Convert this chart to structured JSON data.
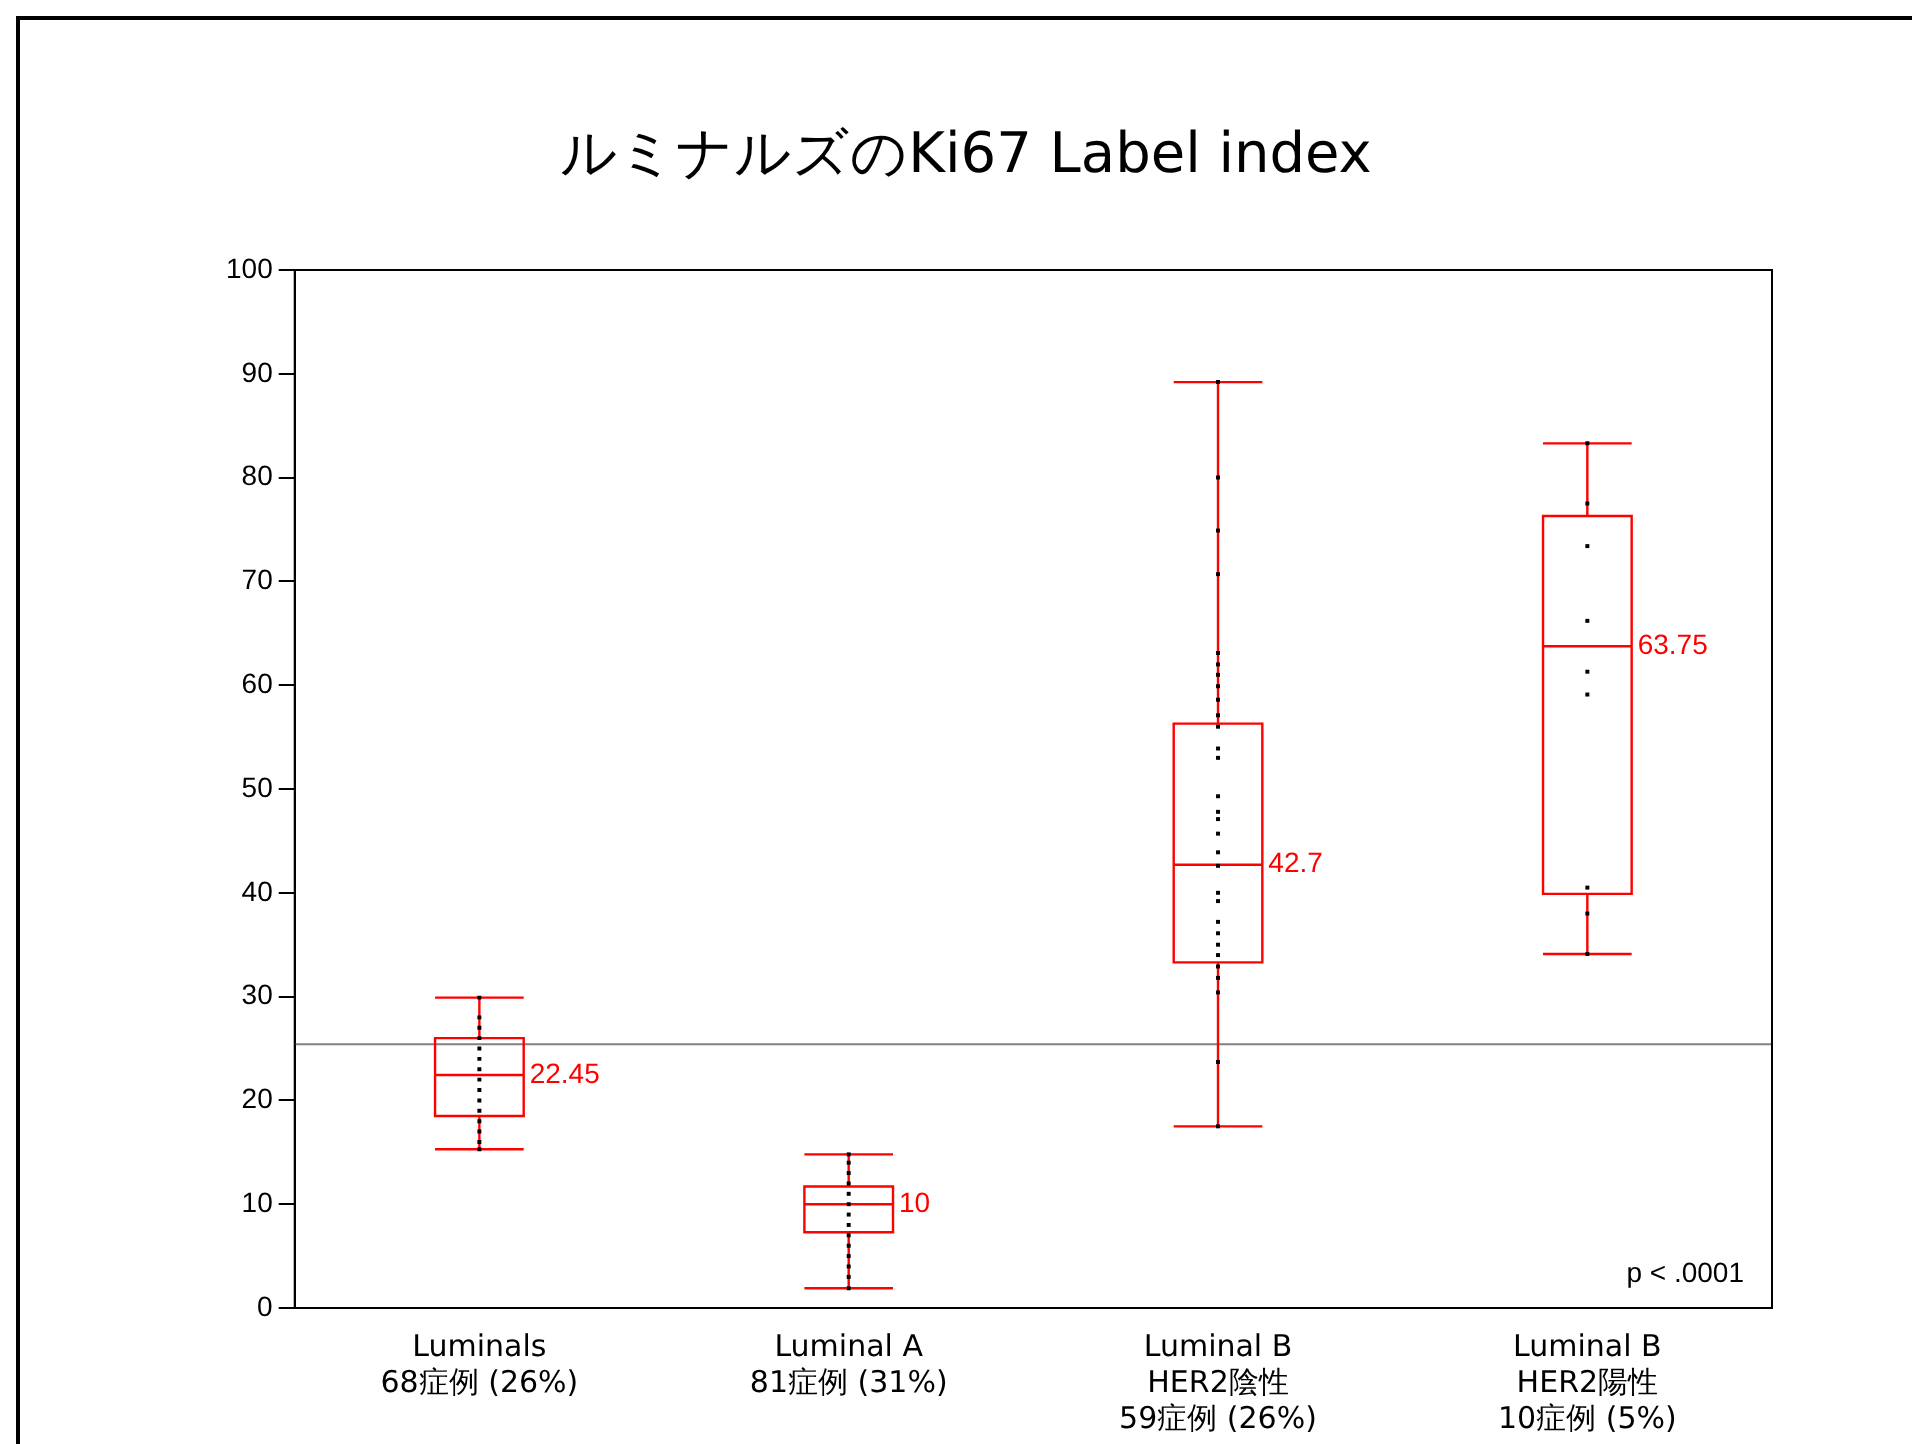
{
  "chart_data": {
    "type": "box",
    "title": "ルミナルズのKi67 Label index",
    "categories": [
      "Luminals\n68症例 (26%)",
      "Luminal A\n81症例 (31%)",
      "Luminal B\nHER2陰性\n59症例 (26%)",
      "Luminal B\nHER2陽性\n10症例 (5%)"
    ],
    "series": [
      {
        "type": "box",
        "color": "#ff0000",
        "boxes": [
          {
            "low": 15.3,
            "q1": 18.5,
            "median": 22.45,
            "q3": 26.0,
            "high": 29.9
          },
          {
            "low": 1.9,
            "q1": 7.3,
            "median": 10,
            "q3": 11.7,
            "high": 14.8
          },
          {
            "low": 17.5,
            "q1": 33.3,
            "median": 42.7,
            "q3": 56.3,
            "high": 89.2
          },
          {
            "low": 34.1,
            "q1": 39.9,
            "median": 63.75,
            "q3": 76.3,
            "high": 83.3
          }
        ]
      },
      {
        "type": "scatter",
        "color": "#000000",
        "x": [
          "Luminals\n68症例 (26%)",
          "Luminals\n68症例 (26%)",
          "Luminals\n68症例 (26%)",
          "Luminals\n68症例 (26%)",
          "Luminals\n68症例 (26%)",
          "Luminals\n68症例 (26%)",
          "Luminals\n68症例 (26%)",
          "Luminals\n68症例 (26%)",
          "Luminals\n68症例 (26%)",
          "Luminals\n68症例 (26%)",
          "Luminals\n68症例 (26%)",
          "Luminals\n68症例 (26%)",
          "Luminals\n68症例 (26%)",
          "Luminals\n68症例 (26%)",
          "Luminals\n68症例 (26%)",
          "Luminal A\n81症例 (31%)",
          "Luminal A\n81症例 (31%)",
          "Luminal A\n81症例 (31%)",
          "Luminal A\n81症例 (31%)",
          "Luminal A\n81症例 (31%)",
          "Luminal A\n81症例 (31%)",
          "Luminal A\n81症例 (31%)",
          "Luminal A\n81症例 (31%)",
          "Luminal A\n81症例 (31%)",
          "Luminal A\n81症例 (31%)",
          "Luminal A\n81症例 (31%)",
          "Luminal A\n81症例 (31%)",
          "Luminal A\n81症例 (31%)",
          "Luminal A\n81症例 (31%)",
          "Luminal B\nHER2陰性\n59症例 (26%)",
          "Luminal B\nHER2陰性\n59症例 (26%)",
          "Luminal B\nHER2陰性\n59症例 (26%)",
          "Luminal B\nHER2陰性\n59症例 (26%)",
          "Luminal B\nHER2陰性\n59症例 (26%)",
          "Luminal B\nHER2陰性\n59症例 (26%)",
          "Luminal B\nHER2陰性\n59症例 (26%)",
          "Luminal B\nHER2陰性\n59症例 (26%)",
          "Luminal B\nHER2陰性\n59症例 (26%)",
          "Luminal B\nHER2陰性\n59症例 (26%)",
          "Luminal B\nHER2陰性\n59症例 (26%)",
          "Luminal B\nHER2陰性\n59症例 (26%)",
          "Luminal B\nHER2陰性\n59症例 (26%)",
          "Luminal B\nHER2陰性\n59症例 (26%)",
          "Luminal B\nHER2陰性\n59症例 (26%)",
          "Luminal B\nHER2陰性\n59症例 (26%)",
          "Luminal B\nHER2陰性\n59症例 (26%)",
          "Luminal B\nHER2陰性\n59症例 (26%)",
          "Luminal B\nHER2陰性\n59症例 (26%)",
          "Luminal B\nHER2陰性\n59症例 (26%)",
          "Luminal B\nHER2陰性\n59症例 (26%)",
          "Luminal B\nHER2陰性\n59症例 (26%)",
          "Luminal B\nHER2陰性\n59症例 (26%)",
          "Luminal B\nHER2陰性\n59症例 (26%)",
          "Luminal B\nHER2陰性\n59症例 (26%)",
          "Luminal B\nHER2陰性\n59症例 (26%)",
          "Luminal B\nHER2陰性\n59症例 (26%)",
          "Luminal B\nHER2陰性\n59症例 (26%)",
          "Luminal B\nHER2陰性\n59症例 (26%)",
          "Luminal B\nHER2陰性\n59症例 (26%)",
          "Luminal B\nHER2陽性\n10症例 (5%)",
          "Luminal B\nHER2陽性\n10症例 (5%)",
          "Luminal B\nHER2陽性\n10症例 (5%)",
          "Luminal B\nHER2陽性\n10症例 (5%)",
          "Luminal B\nHER2陽性\n10症例 (5%)",
          "Luminal B\nHER2陽性\n10症例 (5%)",
          "Luminal B\nHER2陽性\n10症例 (5%)",
          "Luminal B\nHER2陽性\n10症例 (5%)",
          "Luminal B\nHER2陽性\n10症例 (5%)"
        ],
        "values": [
          15.3,
          16,
          17,
          18,
          19,
          20,
          21,
          22,
          23,
          24,
          25,
          26,
          27,
          28,
          29.9,
          1.9,
          3,
          4,
          5,
          6,
          7,
          8,
          9,
          10,
          11,
          12,
          13,
          14,
          14.8,
          89.2,
          80,
          74.9,
          70.7,
          63.1,
          62,
          61,
          59.9,
          58.6,
          57.1,
          56,
          53.9,
          53,
          49.3,
          47.8,
          47.1,
          45.7,
          43.9,
          42.6,
          40,
          39.2,
          37.2,
          36.1,
          35,
          34,
          32.9,
          31.8,
          30.4,
          23.7,
          17.5,
          83.3,
          77.5,
          73.4,
          66.2,
          61.3,
          59.1,
          40.5,
          38,
          34.1
        ]
      }
    ],
    "marker": "square",
    "grid": false,
    "ylim": [
      0,
      100
    ],
    "yticks": [
      0,
      10,
      20,
      30,
      40,
      50,
      60,
      70,
      80,
      90,
      100
    ],
    "ref_lines": [
      {
        "axis": "y",
        "value": 25.4,
        "color": "#808080"
      }
    ],
    "annotations": [
      {
        "text": "22.45",
        "x": "Luminals\n68症例 (26%)",
        "y": 22.45
      },
      {
        "text": "10",
        "x": "Luminal A\n81症例 (31%)",
        "y": 10
      },
      {
        "text": "42.7",
        "x": "Luminal B\nHER2陰性\n59症例 (26%)",
        "y": 42.7
      },
      {
        "text": "63.75",
        "x": "Luminal B\nHER2陽性\n10症例 (5%)",
        "y": 63.75
      },
      "p < .0001"
    ]
  }
}
